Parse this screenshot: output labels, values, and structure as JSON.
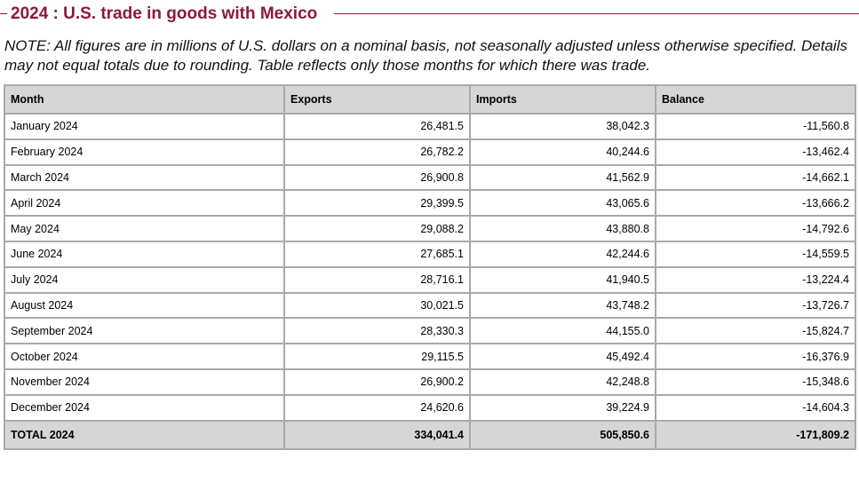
{
  "title": "2024 : U.S. trade in goods with Mexico",
  "note": "NOTE: All figures are in millions of U.S. dollars on a nominal basis, not seasonally adjusted unless otherwise specified. Details may not equal totals due to rounding. Table reflects only those months for which there was trade.",
  "colors": {
    "title": "#8b1a3a",
    "header_bg": "#d6d6d6",
    "border": "#a9a9a9"
  },
  "table": {
    "headers": [
      "Month",
      "Exports",
      "Imports",
      "Balance"
    ],
    "rows": [
      [
        "January 2024",
        "26,481.5",
        "38,042.3",
        "-11,560.8"
      ],
      [
        "February 2024",
        "26,782.2",
        "40,244.6",
        "-13,462.4"
      ],
      [
        "March 2024",
        "26,900.8",
        "41,562.9",
        "-14,662.1"
      ],
      [
        "April 2024",
        "29,399.5",
        "43,065.6",
        "-13,666.2"
      ],
      [
        "May 2024",
        "29,088.2",
        "43,880.8",
        "-14,792.6"
      ],
      [
        "June 2024",
        "27,685.1",
        "42,244.6",
        "-14,559.5"
      ],
      [
        "July 2024",
        "28,716.1",
        "41,940.5",
        "-13,224.4"
      ],
      [
        "August 2024",
        "30,021.5",
        "43,748.2",
        "-13,726.7"
      ],
      [
        "September 2024",
        "28,330.3",
        "44,155.0",
        "-15,824.7"
      ],
      [
        "October 2024",
        "29,115.5",
        "45,492.4",
        "-16,376.9"
      ],
      [
        "November 2024",
        "26,900.2",
        "42,248.8",
        "-15,348.6"
      ],
      [
        "December 2024",
        "24,620.6",
        "39,224.9",
        "-14,604.3"
      ]
    ],
    "total": [
      "TOTAL 2024",
      "334,041.4",
      "505,850.6",
      "-171,809.2"
    ]
  }
}
